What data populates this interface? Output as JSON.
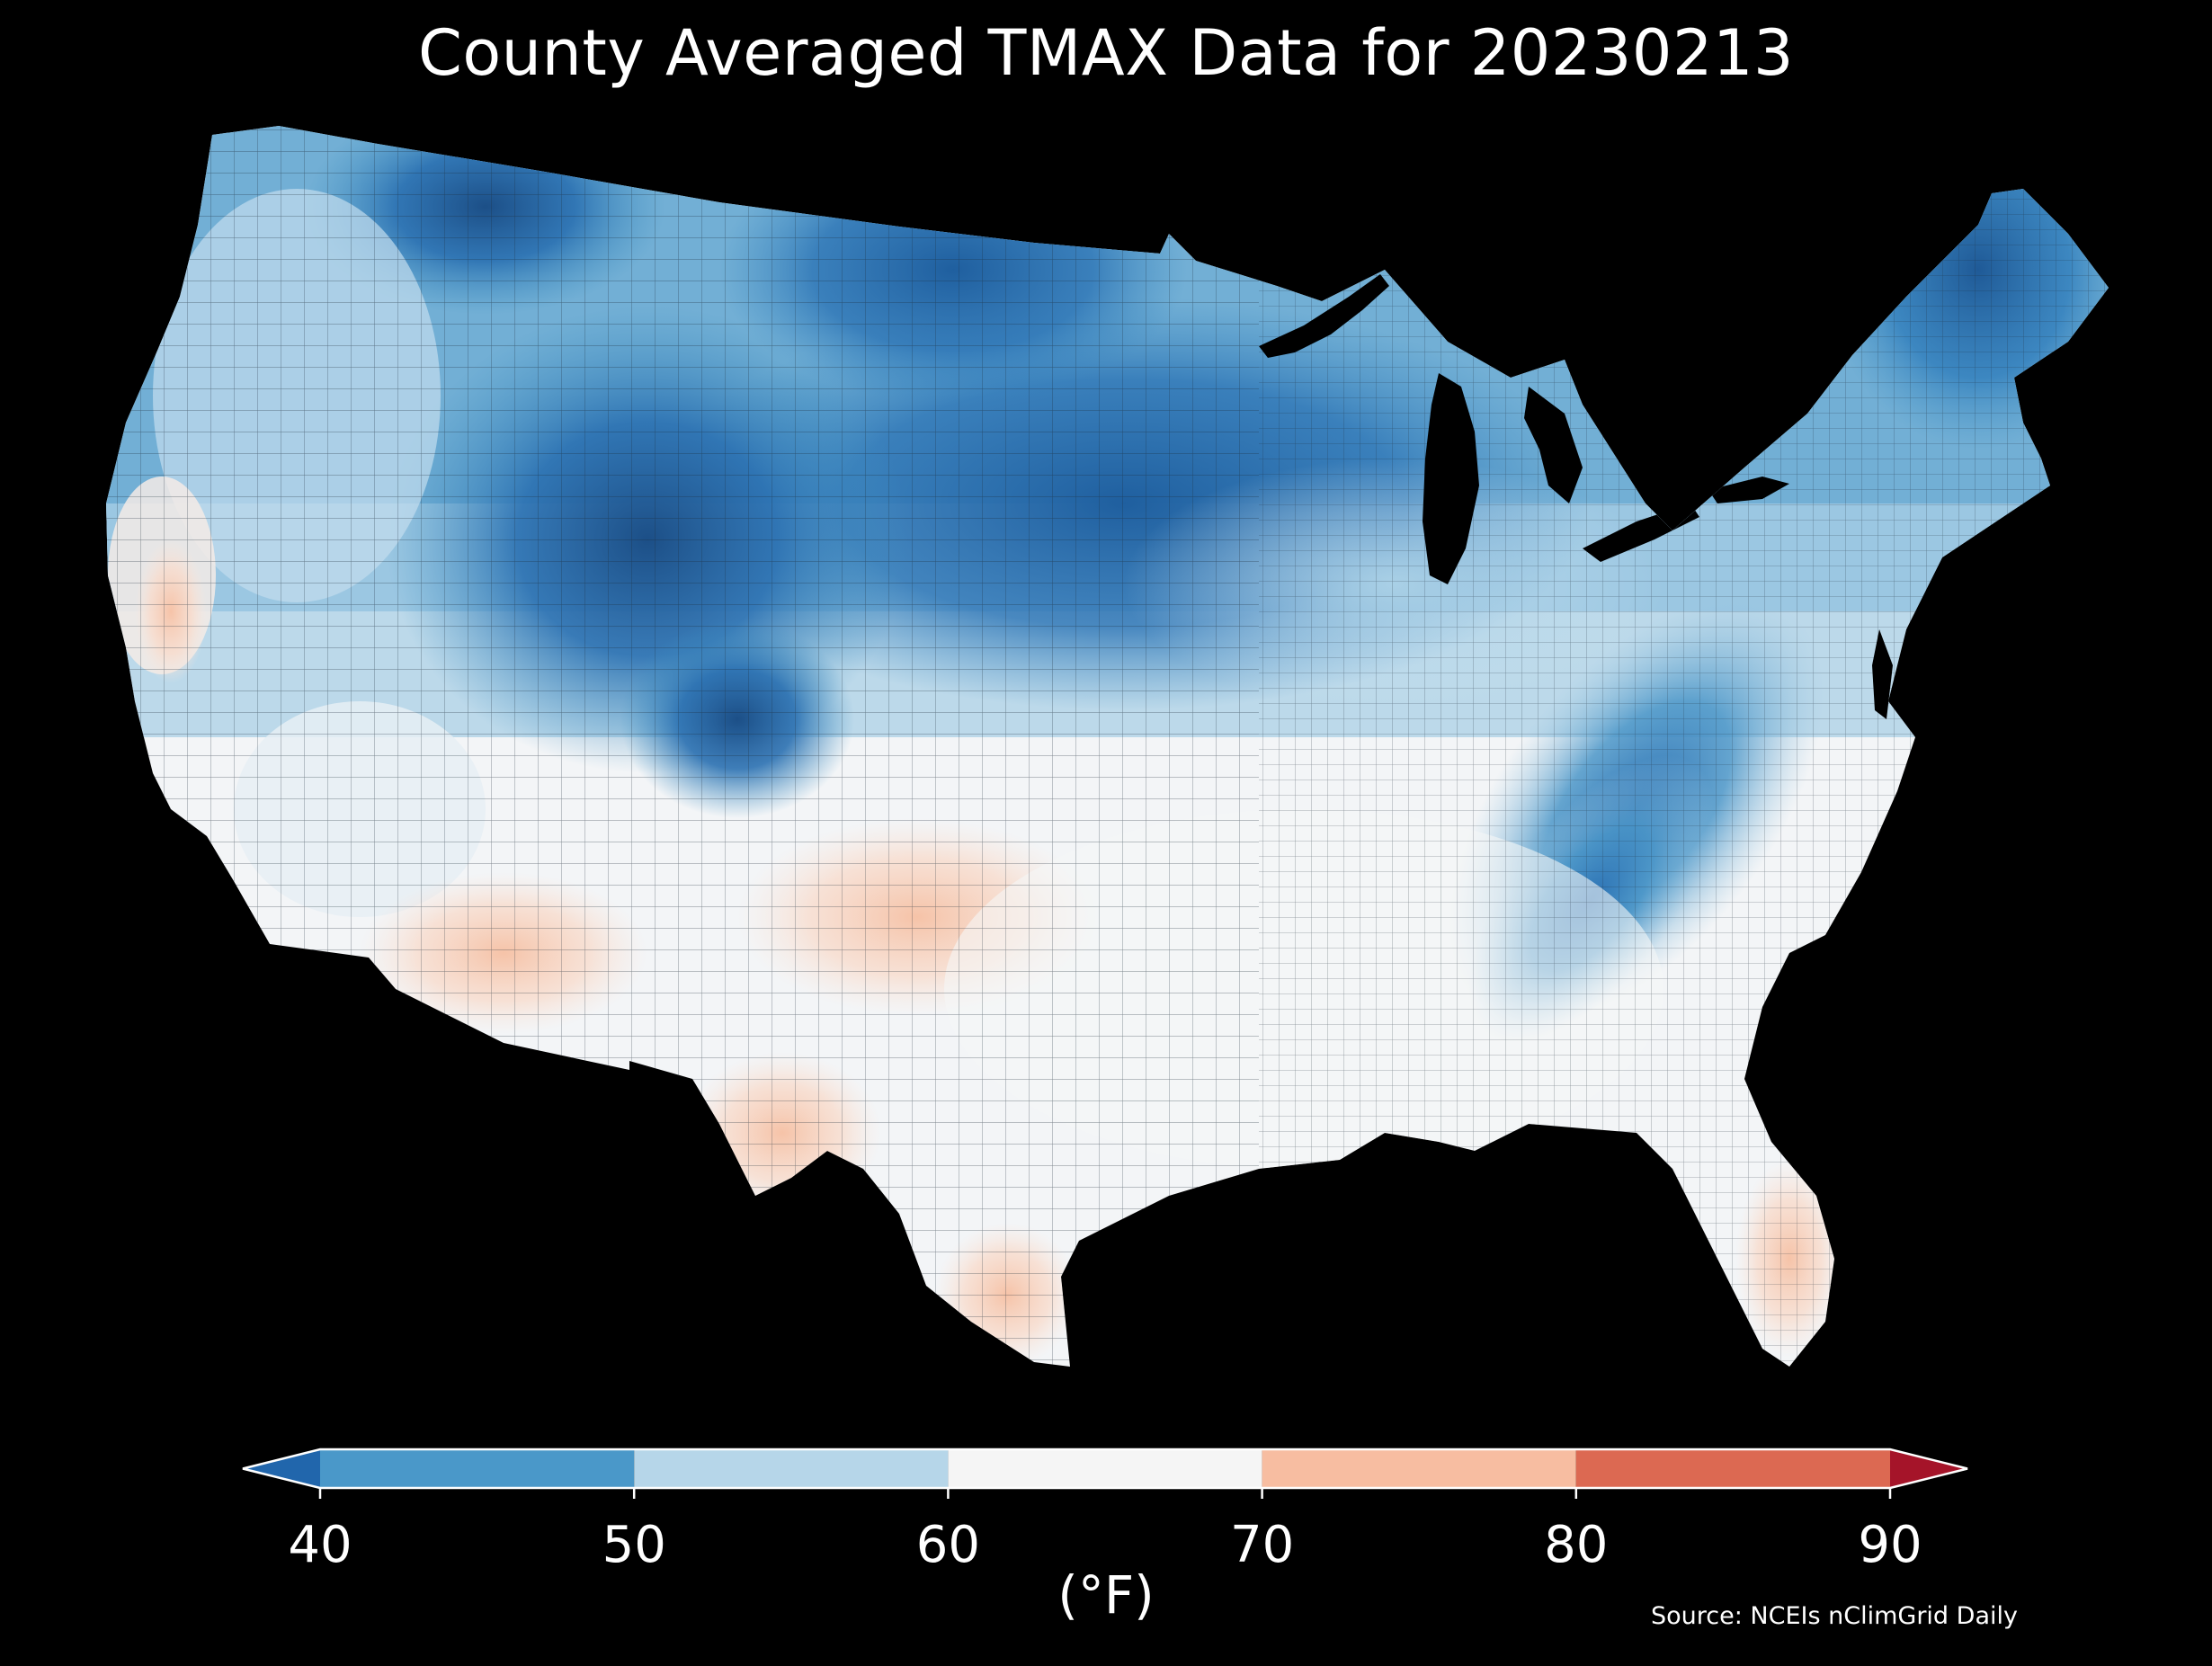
{
  "title": "County Averaged TMAX Data for 20230213",
  "source": "Source: NCEIs nClimGrid Daily",
  "colorbar": {
    "unit": "(°F)",
    "ticks": [
      "40",
      "50",
      "60",
      "70",
      "80",
      "90"
    ],
    "bins": [
      {
        "from": 40,
        "to": 50,
        "color": "#4a98c9"
      },
      {
        "from": 50,
        "to": 60,
        "color": "#b6d6e9"
      },
      {
        "from": 60,
        "to": 70,
        "color": "#f5f5f5"
      },
      {
        "from": 70,
        "to": 80,
        "color": "#f7bda1"
      },
      {
        "from": 80,
        "to": 90,
        "color": "#dc6952"
      }
    ],
    "under_color": "#2166ac",
    "over_color": "#a51429",
    "range": [
      40,
      90
    ]
  },
  "map": {
    "background_color": "#000000",
    "land_color": "#f3f5f7",
    "water_color": "#000000"
  }
}
